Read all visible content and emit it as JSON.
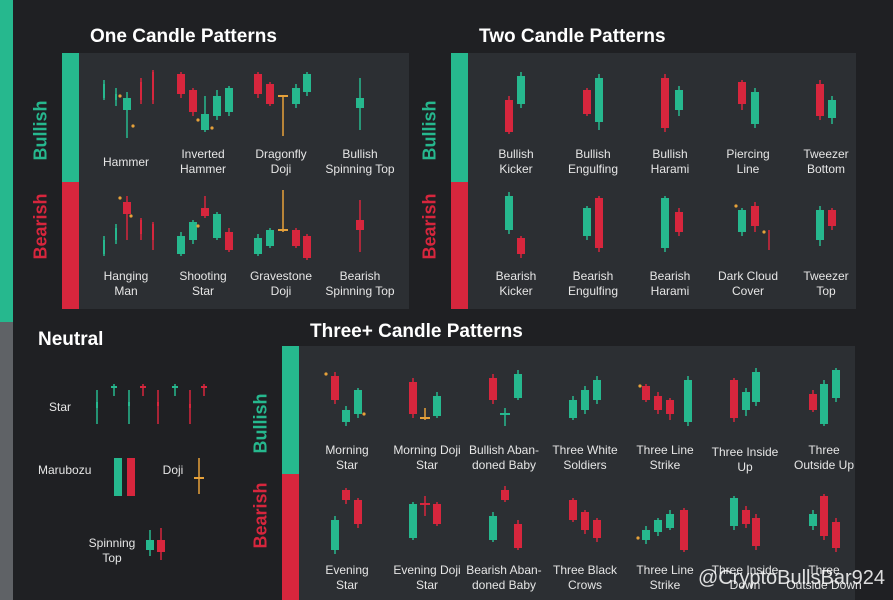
{
  "colors": {
    "bull": "#26b88e",
    "bear": "#d7263d",
    "doji": "#e6a13a",
    "panel": "#2c2f33",
    "bg": "#1f2023"
  },
  "titles": {
    "one": "One Candle Patterns",
    "two": "Two Candle Patterns",
    "neutral": "Neutral",
    "three": "Three+ Candle Patterns"
  },
  "side_labels": {
    "bullish": "Bullish",
    "bearish": "Bearish"
  },
  "one": {
    "bull": [
      "Hammer",
      "Inverted\nHammer",
      "Dragonfly\nDoji",
      "Bullish\nSpinning Top"
    ],
    "bear": [
      "Hanging\nMan",
      "Shooting\nStar",
      "Gravestone\nDoji",
      "Bearish\nSpinning Top"
    ]
  },
  "two": {
    "bull": [
      "Bullish\nKicker",
      "Bullish\nEngulfing",
      "Bullish\nHarami",
      "Piercing\nLine",
      "Tweezer\nBottom"
    ],
    "bear": [
      "Bearish\nKicker",
      "Bearish\nEngulfing",
      "Bearish\nHarami",
      "Dark Cloud\nCover",
      "Tweezer\nTop"
    ]
  },
  "neutral": {
    "star": "Star",
    "marubozu": "Marubozu",
    "doji": "Doji",
    "spinning": "Spinning\nTop"
  },
  "three": {
    "bull": [
      "Morning\nStar",
      "Morning Doji\nStar",
      "Bullish Aban-\ndoned Baby",
      "Three White\nSoldiers",
      "Three Line\nStrike",
      "Three Inside\nUp",
      "Three\nOutside Up"
    ],
    "bear": [
      "Evening\nStar",
      "Evening Doji\nStar",
      "Bearish Aban-\ndoned Baby",
      "Three Black\nCrows",
      "Three Line\nStrike",
      "Three Inside\nDown",
      "Three\nOutside Down"
    ]
  },
  "watermark": "@CryptoBullsBar924"
}
